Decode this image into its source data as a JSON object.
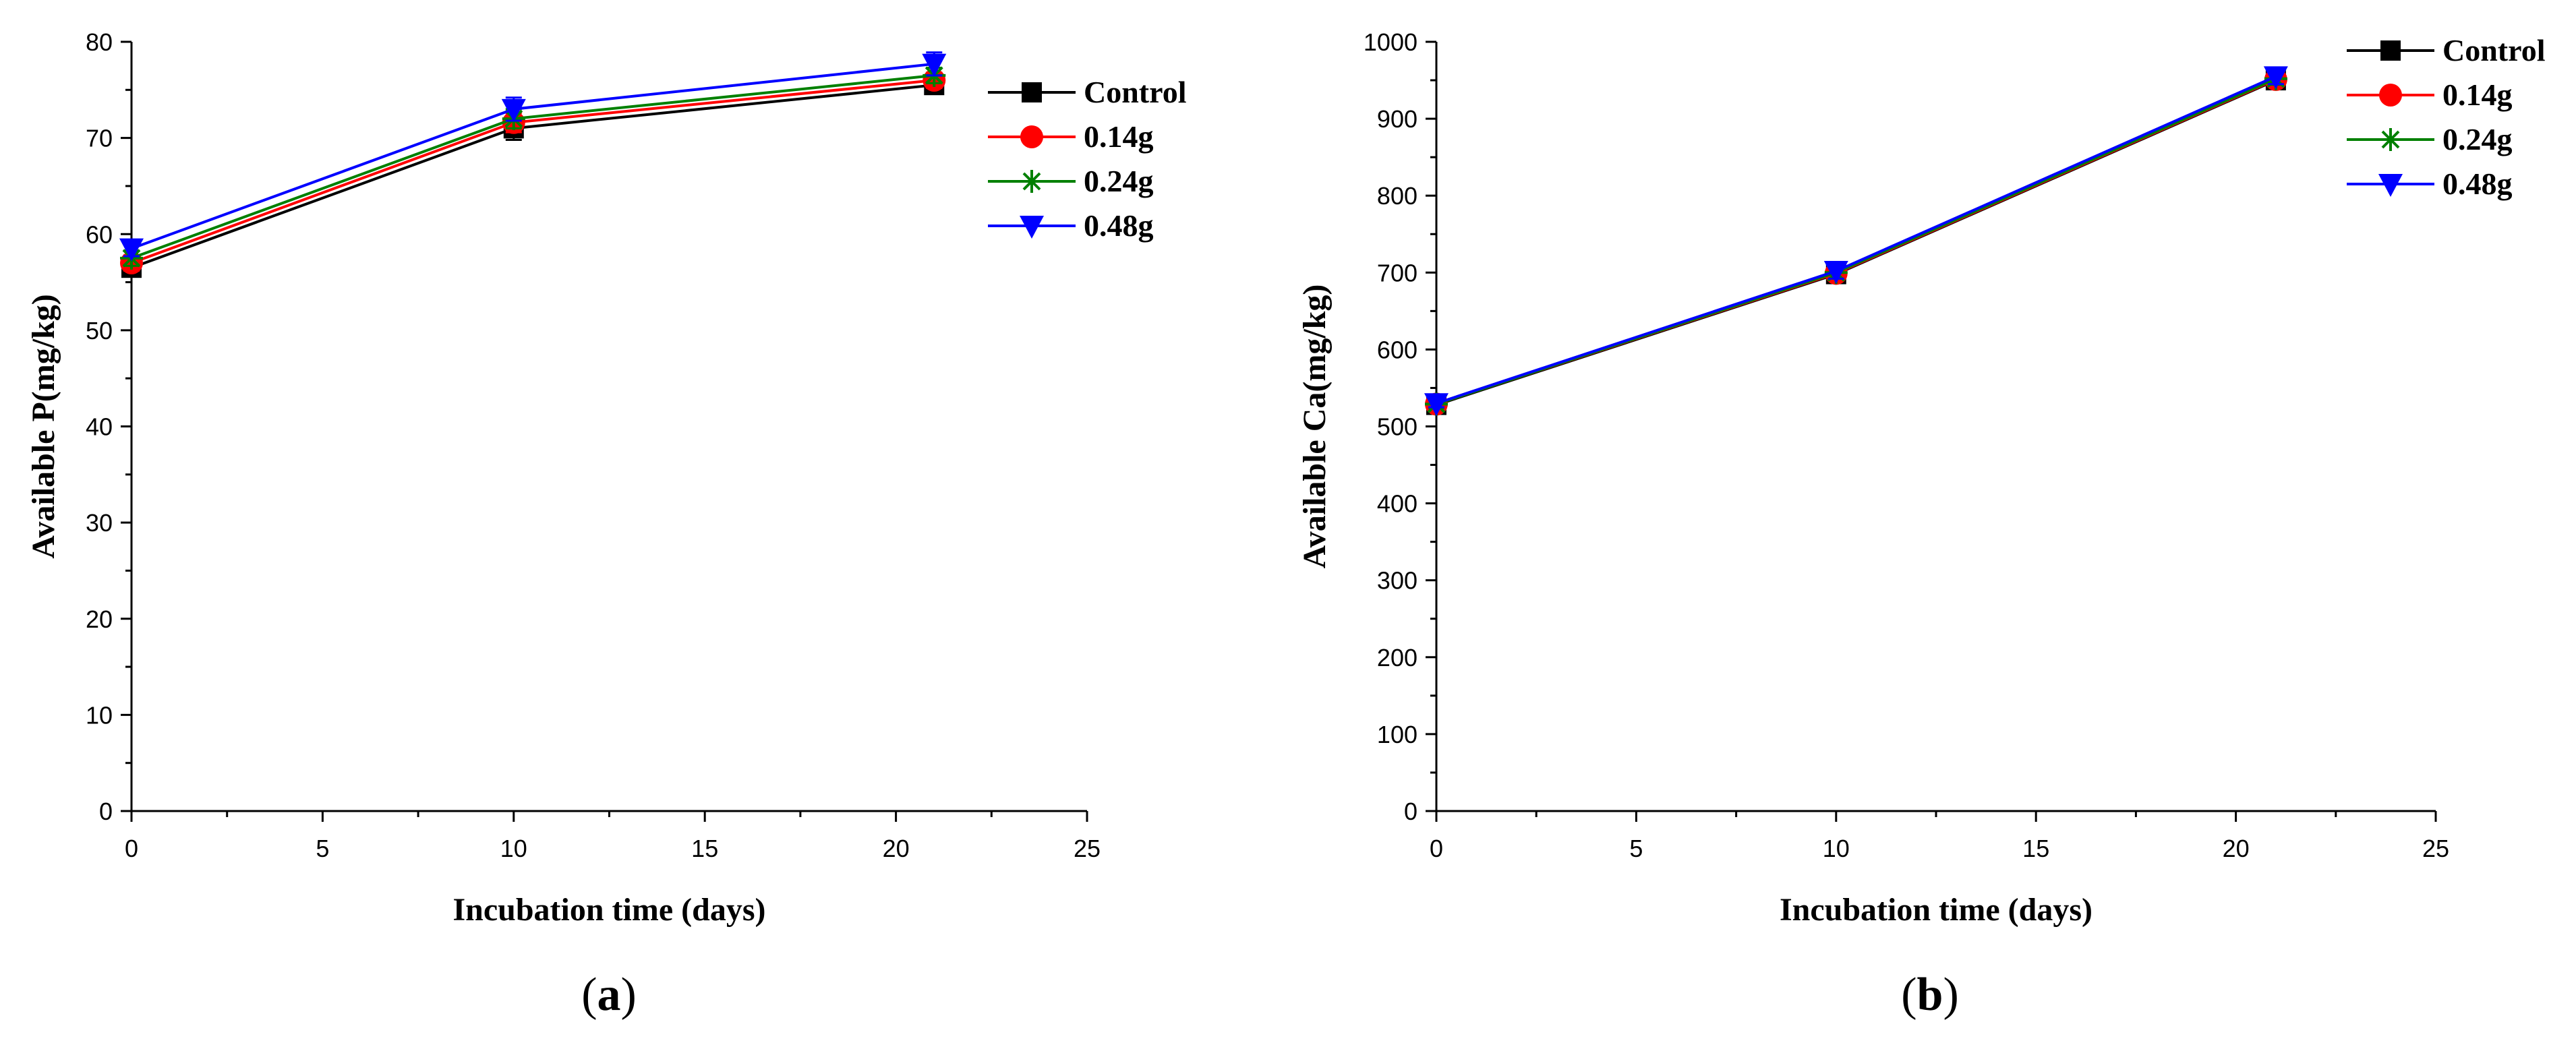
{
  "chart_data": [
    {
      "type": "line",
      "panel": "a",
      "caption": {
        "open": "(",
        "letter": "a",
        "close": ")"
      },
      "xlabel": "Incubation time (days)",
      "ylabel": "Available P(mg/kg)",
      "xlim": [
        0,
        25
      ],
      "ylim": [
        0,
        80
      ],
      "xticks": [
        0,
        5,
        10,
        15,
        20,
        25
      ],
      "yticks": [
        0,
        10,
        20,
        30,
        40,
        50,
        60,
        70,
        80
      ],
      "x": [
        0,
        10,
        21
      ],
      "series": [
        {
          "name": "Control",
          "color": "#000000",
          "marker": "square",
          "values": [
            56.5,
            71.0,
            75.5
          ],
          "errors": [
            0.8,
            1.2,
            0.8
          ]
        },
        {
          "name": "0.14g",
          "color": "#ff0000",
          "marker": "circle",
          "values": [
            57.0,
            71.6,
            76.0
          ],
          "errors": [
            0.8,
            1.0,
            0.8
          ]
        },
        {
          "name": "0.24g",
          "color": "#008000",
          "marker": "asterisk",
          "values": [
            57.5,
            72.0,
            76.5
          ],
          "errors": [
            0.8,
            1.0,
            0.8
          ]
        },
        {
          "name": "0.48g",
          "color": "#0000ff",
          "marker": "triangle-down",
          "values": [
            58.5,
            73.0,
            77.7
          ],
          "errors": [
            0.8,
            1.2,
            1.2
          ]
        }
      ]
    },
    {
      "type": "line",
      "panel": "b",
      "caption": {
        "open": "(",
        "letter": "b",
        "close": ")"
      },
      "xlabel": "Incubation time (days)",
      "ylabel": "Available Ca(mg/kg)",
      "xlim": [
        0,
        25
      ],
      "ylim": [
        0,
        1000
      ],
      "xticks": [
        0,
        5,
        10,
        15,
        20,
        25
      ],
      "yticks": [
        0,
        100,
        200,
        300,
        400,
        500,
        600,
        700,
        800,
        900,
        1000
      ],
      "x": [
        0,
        10,
        21
      ],
      "series": [
        {
          "name": "Control",
          "color": "#000000",
          "marker": "square",
          "values": [
            528,
            698,
            950
          ],
          "errors": [
            5,
            8,
            8
          ]
        },
        {
          "name": "0.14g",
          "color": "#ff0000",
          "marker": "circle",
          "values": [
            529,
            699,
            951
          ],
          "errors": [
            5,
            8,
            8
          ]
        },
        {
          "name": "0.24g",
          "color": "#008000",
          "marker": "asterisk",
          "values": [
            529,
            700,
            952
          ],
          "errors": [
            5,
            8,
            8
          ]
        },
        {
          "name": "0.48g",
          "color": "#0000ff",
          "marker": "triangle-down",
          "values": [
            530,
            702,
            955
          ],
          "errors": [
            5,
            10,
            10
          ]
        }
      ]
    }
  ]
}
